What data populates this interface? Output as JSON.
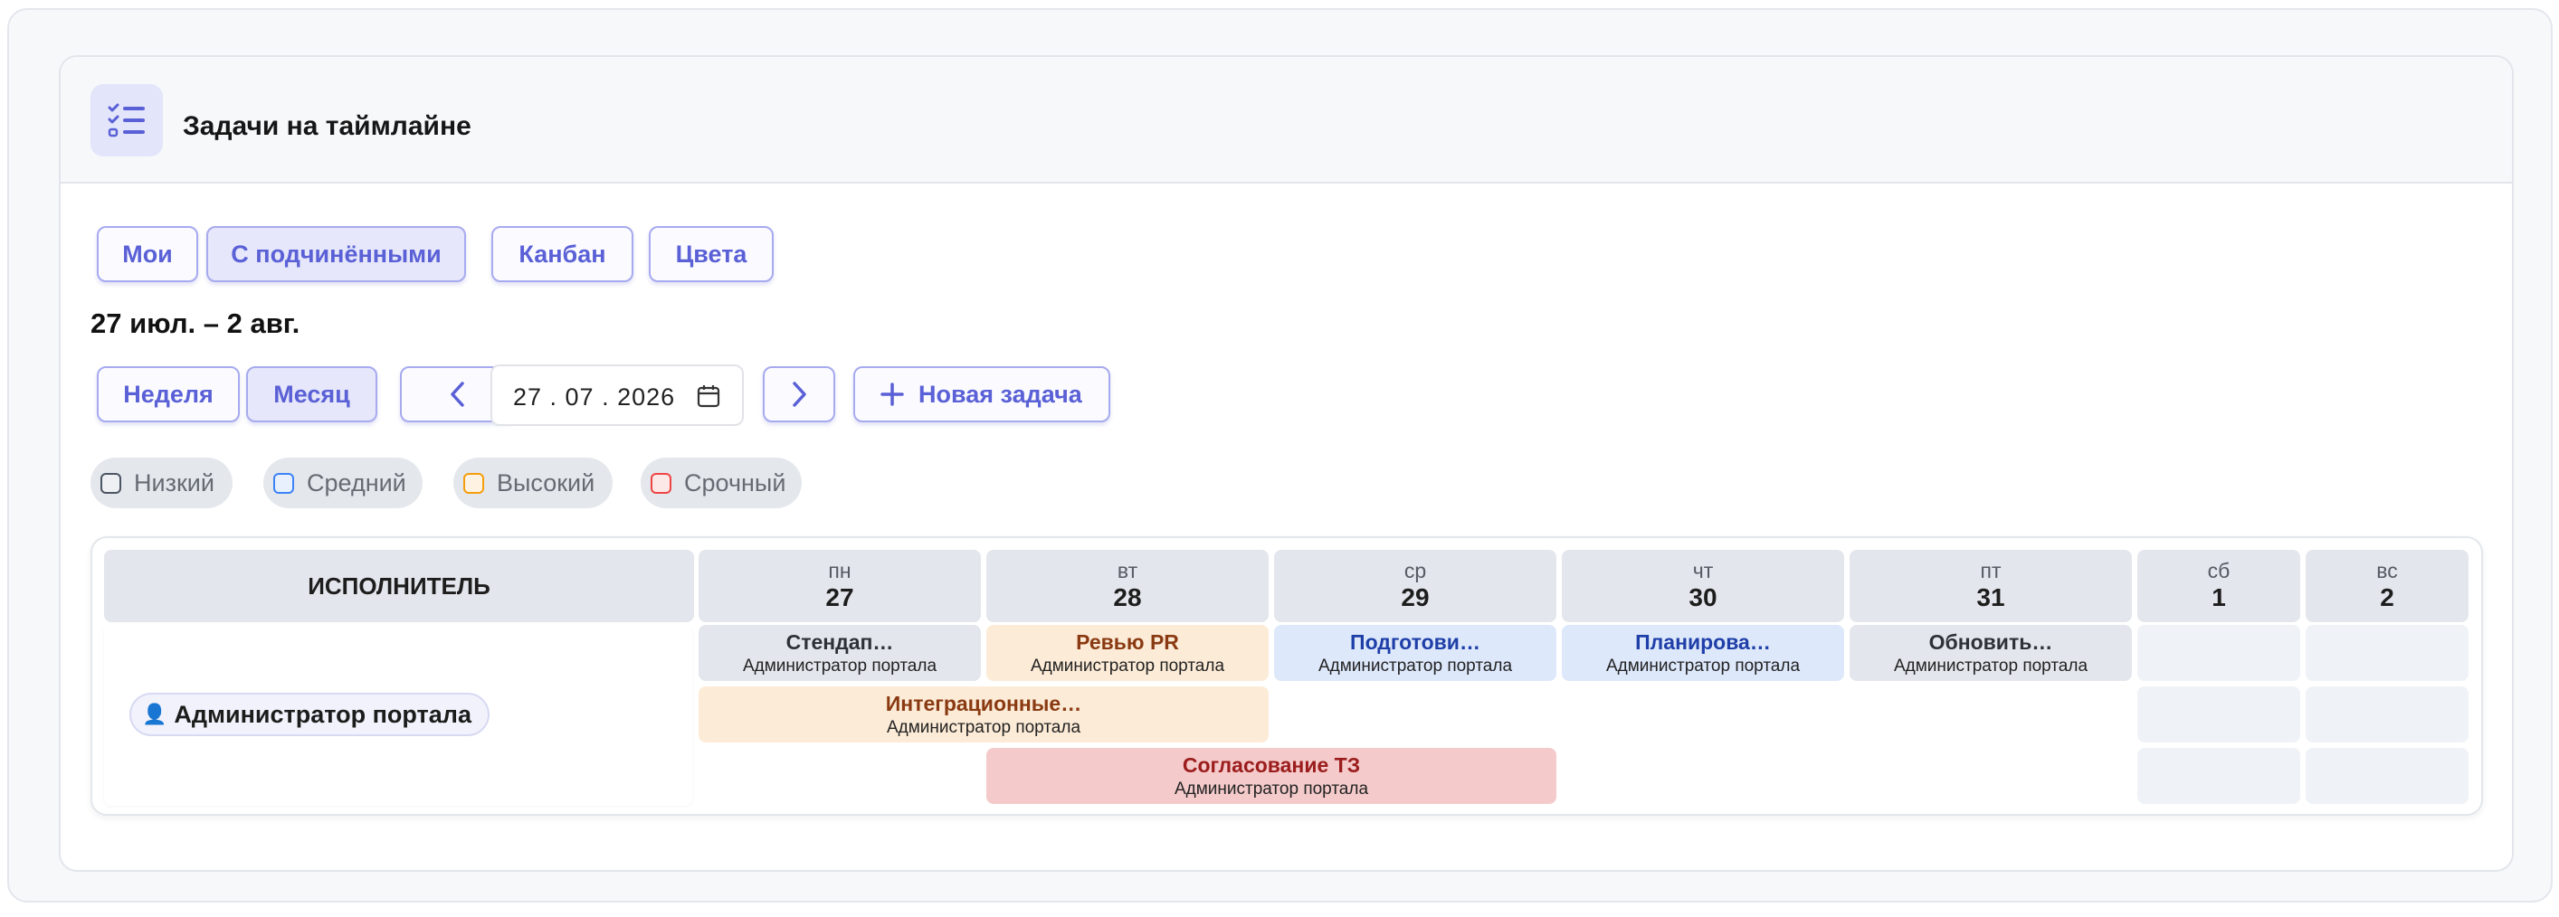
{
  "header": {
    "title": "Задачи на таймлайне",
    "icon": "checklist-icon"
  },
  "view_tabs": [
    {
      "label": "Мои",
      "active": false
    },
    {
      "label": "С подчинёнными",
      "active": true
    },
    {
      "label": "Канбан",
      "active": false
    },
    {
      "label": "Цвета",
      "active": false
    }
  ],
  "date_range": "27 июл. – 2 авг.",
  "period_tabs": [
    {
      "label": "Неделя",
      "active": false
    },
    {
      "label": "Месяц",
      "active": true
    }
  ],
  "date_input": {
    "value": "27 . 07 . 2026"
  },
  "new_task_label": "Новая задача",
  "priorities": [
    {
      "label": "Низкий",
      "color": "#6b7280"
    },
    {
      "label": "Средний",
      "color": "#3b82f6"
    },
    {
      "label": "Высокий",
      "color": "#f59e0b"
    },
    {
      "label": "Срочный",
      "color": "#ef4444"
    }
  ],
  "timeline": {
    "executor_header": "ИСПОЛНИТЕЛЬ",
    "days": [
      {
        "dow": "пн",
        "num": "27"
      },
      {
        "dow": "вт",
        "num": "28"
      },
      {
        "dow": "ср",
        "num": "29"
      },
      {
        "dow": "чт",
        "num": "30"
      },
      {
        "dow": "пт",
        "num": "31"
      },
      {
        "dow": "сб",
        "num": "1"
      },
      {
        "dow": "вс",
        "num": "2"
      }
    ],
    "assignee": "Администратор портала",
    "tasks": [
      {
        "title": "Стендап…",
        "assignee": "Администратор портала",
        "color": "gray"
      },
      {
        "title": "Ревью PR",
        "assignee": "Администратор портала",
        "color": "orange"
      },
      {
        "title": "Подготови…",
        "assignee": "Администратор портала",
        "color": "blue"
      },
      {
        "title": "Планирова…",
        "assignee": "Администратор портала",
        "color": "blue"
      },
      {
        "title": "Обновить…",
        "assignee": "Администратор портала",
        "color": "gray"
      },
      {
        "title": "Интеграционные…",
        "assignee": "Администратор портала",
        "color": "orange"
      },
      {
        "title": "Согласование ТЗ",
        "assignee": "Администратор портала",
        "color": "red"
      }
    ]
  }
}
